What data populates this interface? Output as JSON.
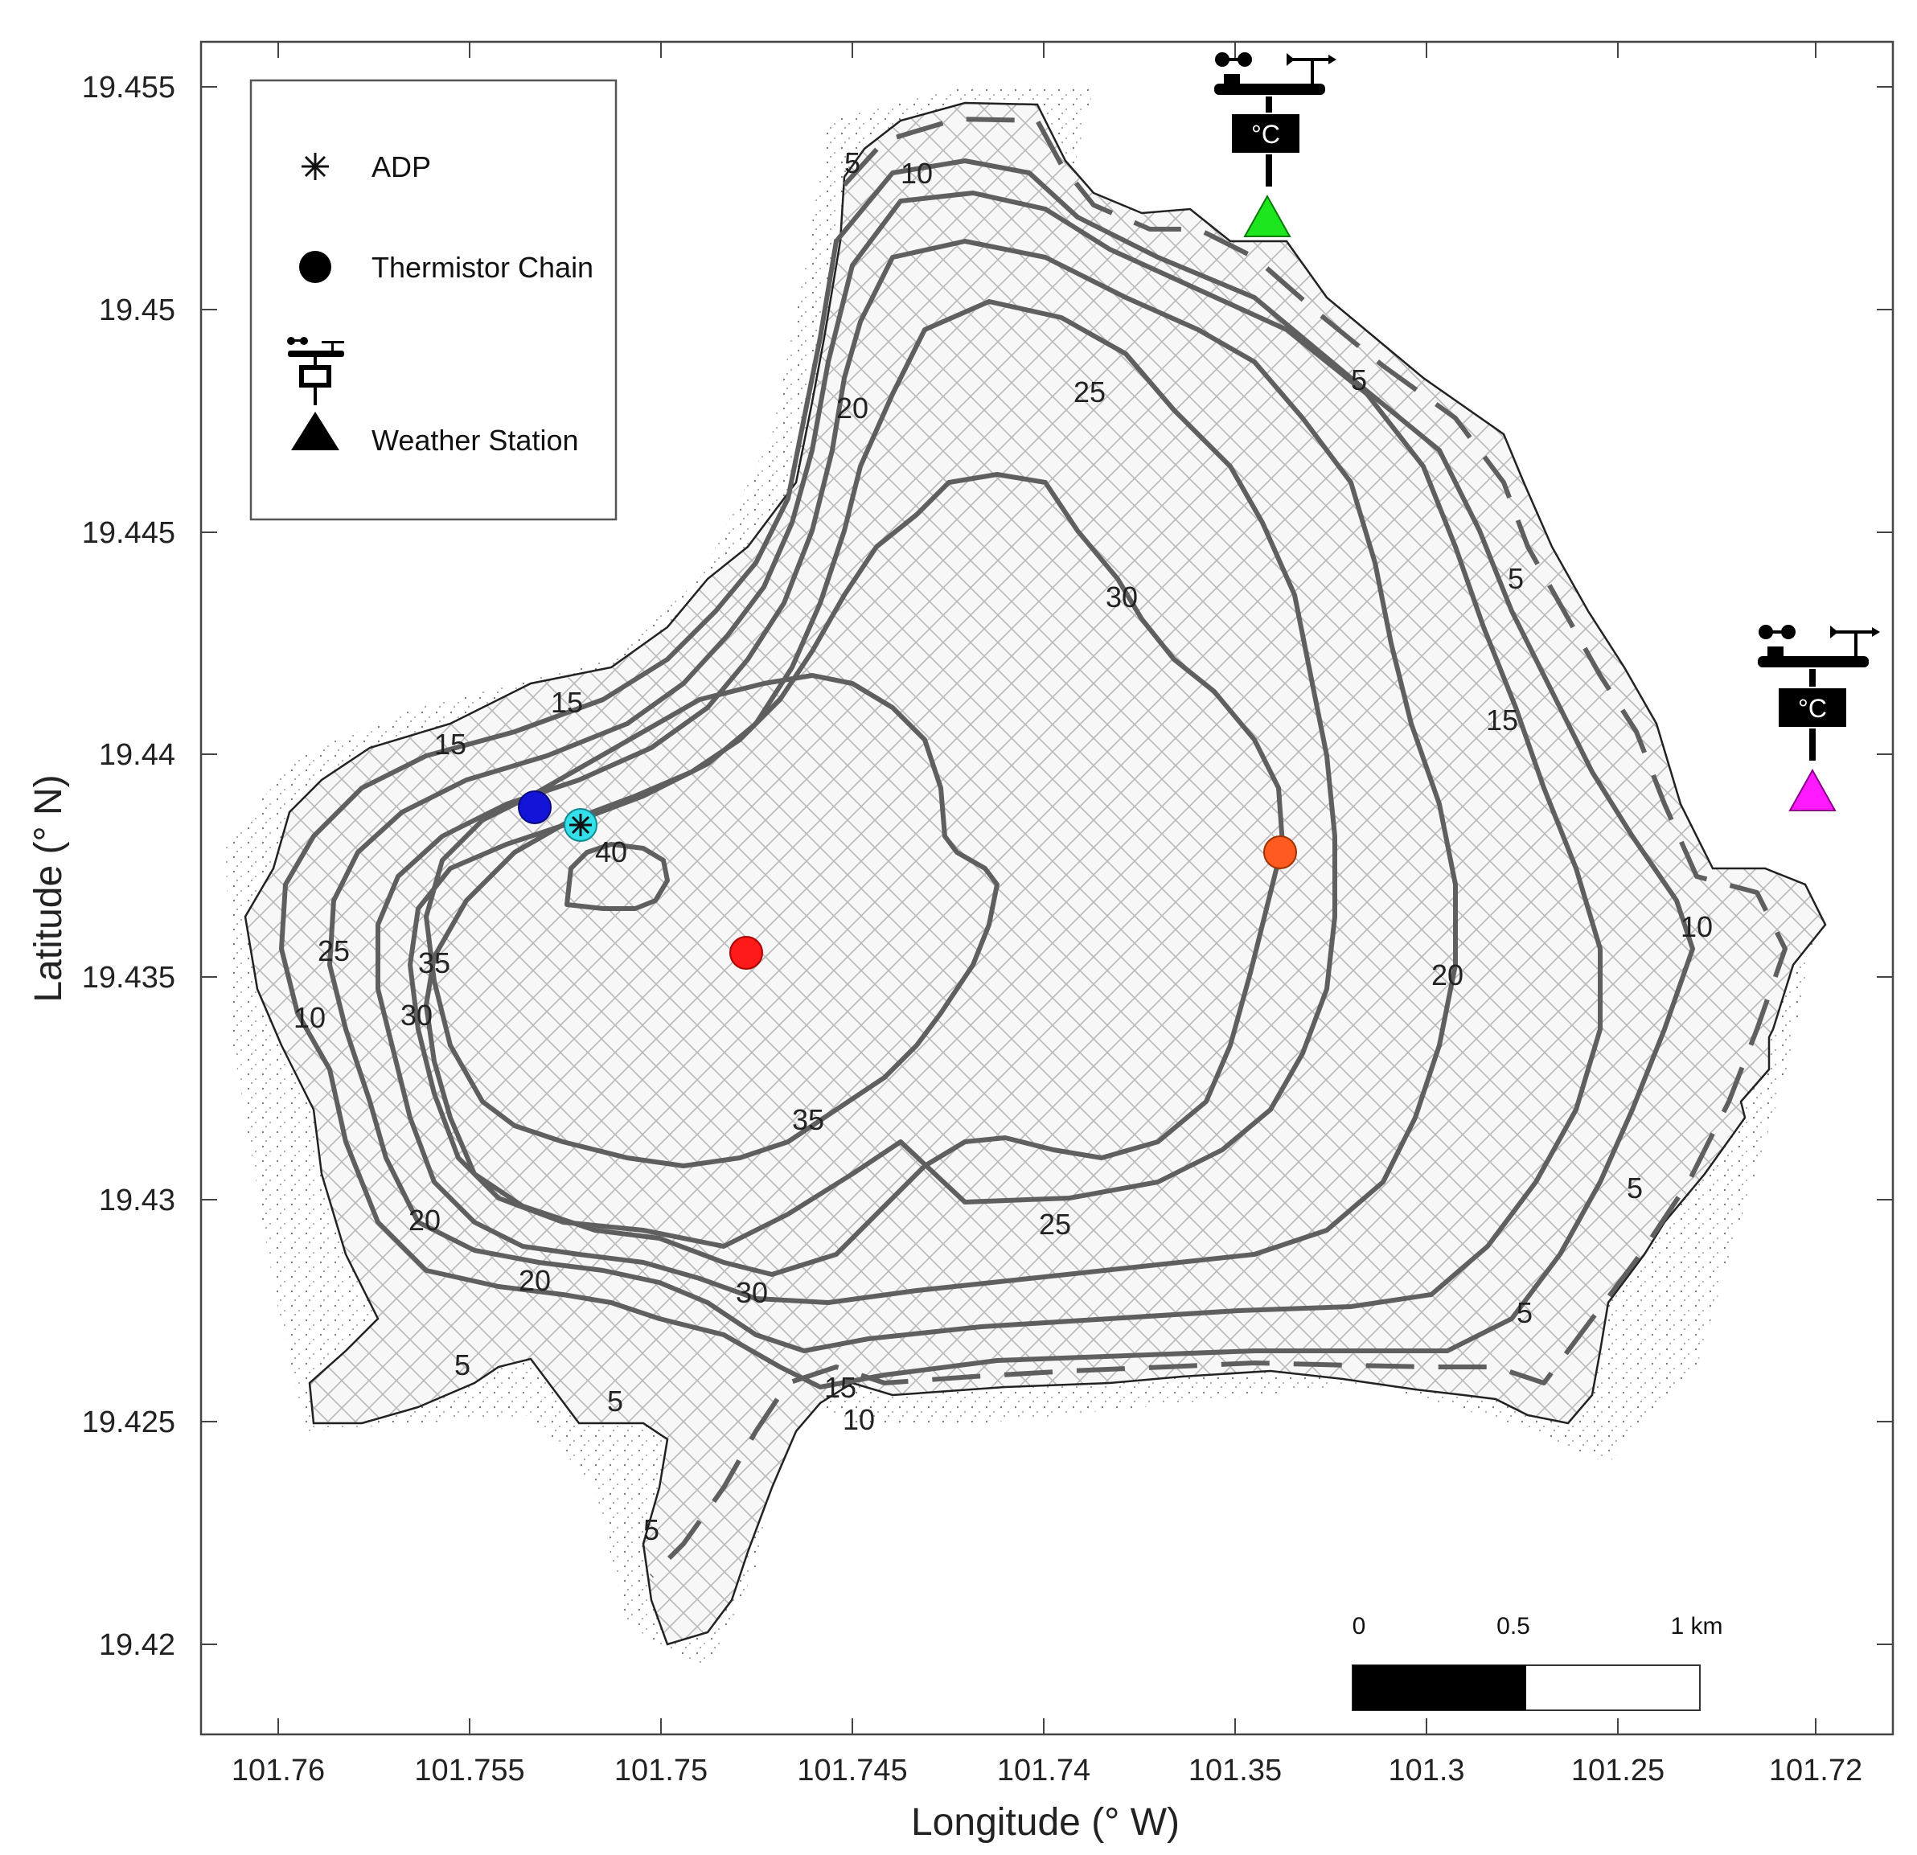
{
  "axes": {
    "xlabel": "Longitude (° W)",
    "ylabel": "Latitude (° N)",
    "x_ticks": [
      "101.76",
      "101.755",
      "101.75",
      "101.745",
      "101.74",
      "101.35",
      "101.3",
      "101.25",
      "101.72"
    ],
    "y_ticks": [
      "19.455",
      "19.45",
      "19.445",
      "19.44",
      "19.435",
      "19.43",
      "19.425",
      "19.42"
    ]
  },
  "legend": {
    "items": [
      {
        "label": "ADP",
        "symbol": "asterisk"
      },
      {
        "label": "Thermistor Chain",
        "symbol": "filled-circle"
      },
      {
        "label": "Weather Station",
        "symbol": "weather-station-triangle"
      }
    ]
  },
  "contour_labels": [
    "5",
    "10",
    "15",
    "20",
    "25",
    "30",
    "35",
    "40"
  ],
  "stations": {
    "weather_station_unit": "°C",
    "thermistor_colors": [
      "#1414d8",
      "#ff1a1a",
      "#ff5a1f"
    ],
    "adp_color": "#33e0ea",
    "weather_station_colors": [
      "#1ee61e",
      "#ff1aff"
    ]
  },
  "scale_bar": {
    "labels": [
      "0",
      "0.5",
      "1 km"
    ]
  },
  "icons": [
    "asterisk-icon",
    "circle-icon",
    "triangle-icon",
    "anemometer-icon",
    "thermometer-icon"
  ]
}
